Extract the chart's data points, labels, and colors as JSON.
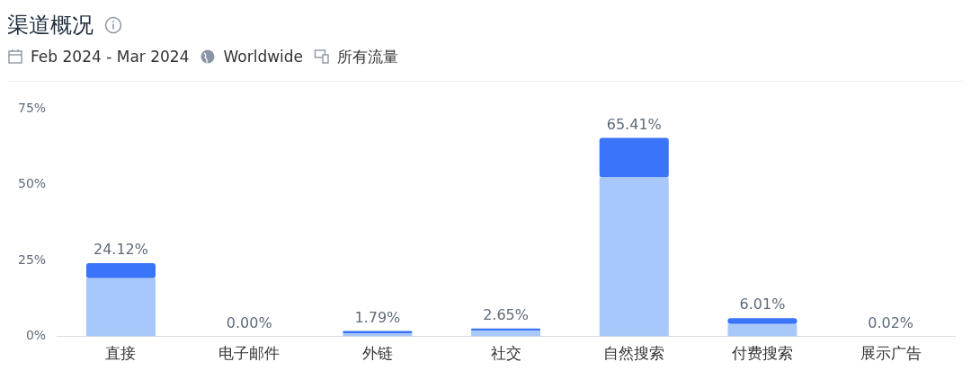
{
  "chart_data": {
    "type": "bar",
    "title": "渠道概况",
    "subtitle": "Feb 2024 - Mar 2024",
    "annotations": [
      "Worldwide",
      "所有流量"
    ],
    "categories": [
      "直接",
      "电子邮件",
      "外链",
      "社交",
      "自然搜索",
      "付费搜索",
      "展示广告"
    ],
    "stacked": true,
    "series": [
      {
        "color": "#a8c8fc",
        "values": [
          19.2,
          0,
          1.1,
          1.9,
          52.4,
          4.1,
          0.02
        ]
      },
      {
        "color": "#3a74f8",
        "values": [
          4.92,
          0,
          0.69,
          0.75,
          13.01,
          1.91,
          0
        ]
      }
    ],
    "totals": [
      "24.12%",
      "0.00%",
      "1.79%",
      "2.65%",
      "65.41%",
      "6.01%",
      "0.02%"
    ],
    "ylim": [
      0,
      75
    ],
    "yticks": [
      {
        "value": 0,
        "label": "0%"
      },
      {
        "value": 25,
        "label": "25%"
      },
      {
        "value": 50,
        "label": "50%"
      },
      {
        "value": 75,
        "label": "75%"
      }
    ],
    "grid": false,
    "legend": false
  }
}
